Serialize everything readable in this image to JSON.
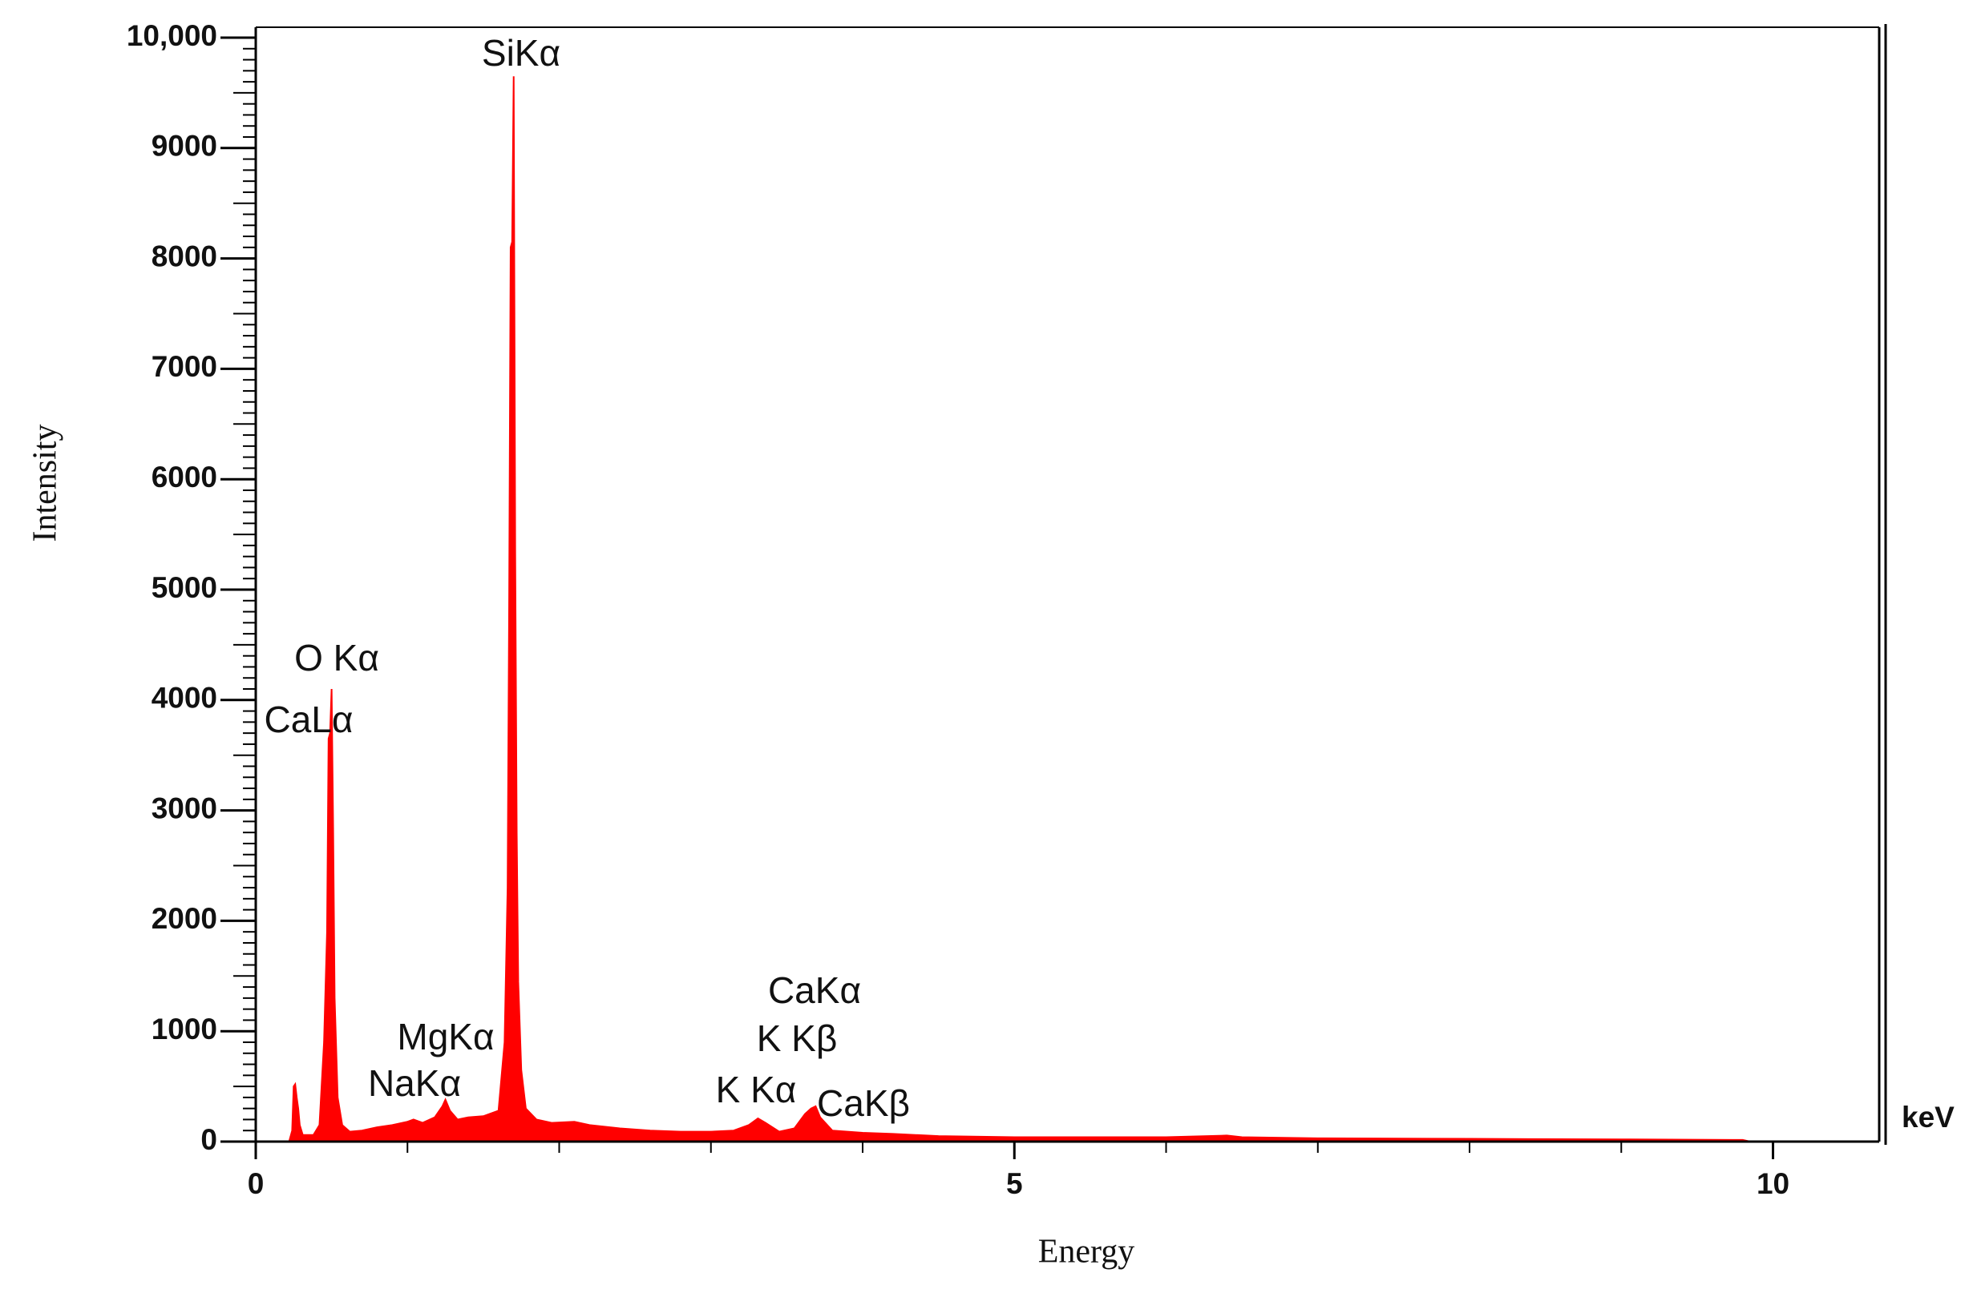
{
  "chart_data": {
    "type": "area",
    "x_label": "Energy",
    "y_label": "Intensity",
    "x_unit": "keV",
    "color": "#ff0000",
    "x": [
      0.0,
      0.22,
      0.24,
      0.25,
      0.26,
      0.27,
      0.28,
      0.29,
      0.31,
      0.38,
      0.42,
      0.45,
      0.47,
      0.48,
      0.49,
      0.5,
      0.51,
      0.52,
      0.54,
      0.57,
      0.62,
      0.7,
      0.8,
      0.9,
      1.0,
      1.04,
      1.1,
      1.18,
      1.23,
      1.25,
      1.28,
      1.33,
      1.4,
      1.5,
      1.6,
      1.64,
      1.66,
      1.67,
      1.68,
      1.69,
      1.7,
      1.71,
      1.72,
      1.73,
      1.75,
      1.78,
      1.85,
      1.95,
      2.1,
      2.2,
      2.4,
      2.6,
      2.8,
      3.0,
      3.15,
      3.25,
      3.31,
      3.36,
      3.45,
      3.55,
      3.62,
      3.66,
      3.69,
      3.72,
      3.8,
      4.0,
      4.2,
      4.5,
      5.0,
      6.0,
      6.4,
      6.5,
      7.0,
      8.0,
      9.0,
      9.8,
      9.85
    ],
    "values": [
      0,
      0,
      100,
      500,
      520,
      400,
      300,
      150,
      60,
      60,
      150,
      900,
      1900,
      3650,
      3700,
      4100,
      2850,
      1300,
      400,
      150,
      90,
      100,
      130,
      150,
      180,
      200,
      170,
      220,
      320,
      380,
      280,
      200,
      220,
      230,
      280,
      900,
      2300,
      4850,
      8100,
      8150,
      9650,
      5350,
      2800,
      1450,
      650,
      300,
      200,
      170,
      180,
      150,
      120,
      100,
      90,
      90,
      100,
      150,
      210,
      170,
      90,
      120,
      250,
      300,
      320,
      220,
      100,
      80,
      70,
      50,
      40,
      40,
      55,
      40,
      30,
      25,
      20,
      15,
      0
    ],
    "xlim": [
      0,
      10.7
    ],
    "ylim": [
      0,
      10000
    ],
    "xticks": [
      0,
      5,
      10
    ],
    "yticks": [
      0,
      1000,
      2000,
      3000,
      4000,
      5000,
      6000,
      7000,
      8000,
      9000,
      {
        "value": 10000,
        "label": "10,000"
      }
    ],
    "annotations": [
      "SiKα",
      "O Kα",
      "CaLα",
      "MgKα",
      "NaKα",
      "CaKα",
      "K Kβ",
      "K Kα",
      "CaKβ"
    ]
  }
}
